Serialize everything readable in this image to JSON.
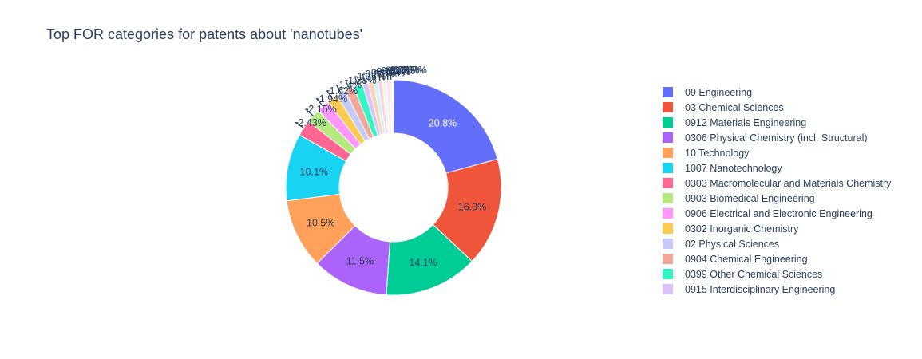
{
  "chart_data": {
    "type": "pie",
    "hole": true,
    "title": "Top FOR categories for patents about 'nanotubes'",
    "legend_placement": "right",
    "categories": [
      "09 Engineering",
      "03 Chemical Sciences",
      "0912 Materials Engineering",
      "0306 Physical Chemistry (incl. Structural)",
      "10 Technology",
      "1007 Nanotechnology",
      "0303 Macromolecular and Materials Chemistry",
      "0903 Biomedical Engineering",
      "0906 Electrical and Electronic Engineering",
      "0302 Inorganic Chemistry",
      "02 Physical Sciences",
      "0904 Chemical Engineering",
      "0399 Other Chemical Sciences",
      "0915 Interdisciplinary Engineering",
      "",
      "",
      "",
      "",
      "",
      "",
      ""
    ],
    "values": [
      20.8,
      16.3,
      14.1,
      11.5,
      10.5,
      10.1,
      2.43,
      2.15,
      1.94,
      1.62,
      1.4,
      1.38,
      1.36,
      0.852,
      0.805,
      0.656,
      0.625,
      0.601,
      0.558,
      0.367,
      0.2
    ],
    "labels": [
      "20.8%",
      "16.3%",
      "14.1%",
      "11.5%",
      "10.5%",
      "10.1%",
      "2.43%",
      "2.15%",
      "1.94%",
      "1.62%",
      "1.4%",
      "1.38%",
      "1.36%",
      "0.852%",
      "0.805%",
      "0.656%",
      "0.625%",
      "0.601%",
      "0.558%",
      "0.367%",
      ""
    ],
    "colors": [
      "#636efa",
      "#EF553B",
      "#00cc96",
      "#ab63fa",
      "#FFA15A",
      "#19d3f3",
      "#FF6692",
      "#B6E880",
      "#FF97FF",
      "#FECB52",
      "#c6caf8",
      "#f2a899",
      "#33f5c3",
      "#dcc2fd",
      "#fed2b0",
      "#c8f4fb",
      "#ffd0de",
      "#eef8e4",
      "#fde2f8",
      "#fff2d4",
      "#ffffff"
    ],
    "outside_label_color": "#2a3f5f",
    "inside_label_color_dark": "#2a3f5f",
    "inside_label_color_light": "#ffffff"
  }
}
